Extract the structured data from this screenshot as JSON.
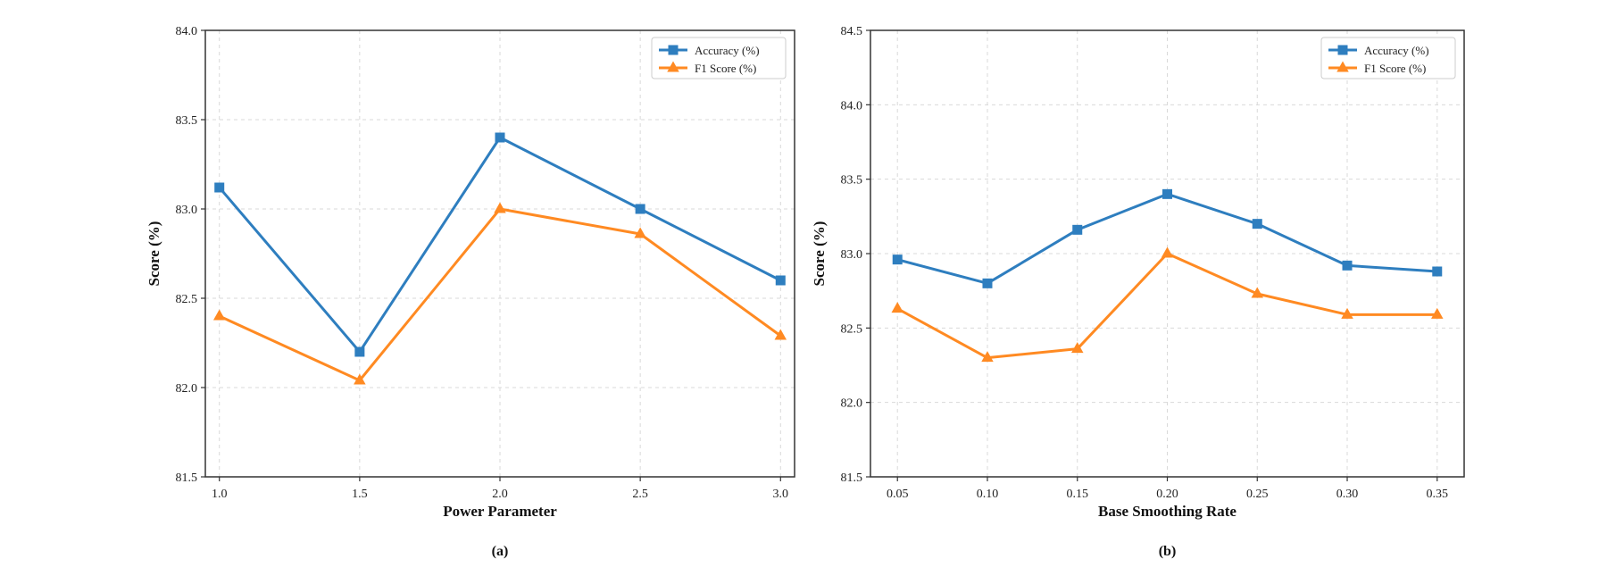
{
  "chart_data": [
    {
      "type": "line",
      "caption": "(a)",
      "title": "",
      "xlabel": "Power Parameter",
      "ylabel": "Score (%)",
      "x": [
        1.0,
        1.5,
        2.0,
        2.5,
        3.0
      ],
      "x_tick_labels": [
        "1.0",
        "1.5",
        "2.0",
        "2.5",
        "3.0"
      ],
      "y_tick_labels": [
        "81.5",
        "82.0",
        "82.5",
        "83.0",
        "83.5",
        "84.0"
      ],
      "xlim": [
        0.95,
        3.05
      ],
      "ylim": [
        81.5,
        84.0
      ],
      "grid": true,
      "legend_position": "top-right",
      "series": [
        {
          "name": "Accuracy (%)",
          "color": "#2e7ebf",
          "marker": "square",
          "values": [
            83.12,
            82.2,
            83.4,
            83.0,
            82.6
          ]
        },
        {
          "name": "F1 Score (%)",
          "color": "#ff8a22",
          "marker": "triangle",
          "values": [
            82.4,
            82.04,
            83.0,
            82.86,
            82.29
          ]
        }
      ]
    },
    {
      "type": "line",
      "caption": "(b)",
      "title": "",
      "xlabel": "Base Smoothing Rate",
      "ylabel": "Score (%)",
      "x": [
        0.05,
        0.1,
        0.15,
        0.2,
        0.25,
        0.3,
        0.35
      ],
      "x_tick_labels": [
        "0.05",
        "0.10",
        "0.15",
        "0.20",
        "0.25",
        "0.30",
        "0.35"
      ],
      "y_tick_labels": [
        "81.5",
        "82.0",
        "82.5",
        "83.0",
        "83.5",
        "84.0",
        "84.5"
      ],
      "xlim": [
        0.035,
        0.365
      ],
      "ylim": [
        81.5,
        84.5
      ],
      "grid": true,
      "legend_position": "top-right",
      "series": [
        {
          "name": "Accuracy (%)",
          "color": "#2e7ebf",
          "marker": "square",
          "values": [
            82.96,
            82.8,
            83.16,
            83.4,
            83.2,
            82.92,
            82.88
          ]
        },
        {
          "name": "F1 Score (%)",
          "color": "#ff8a22",
          "marker": "triangle",
          "values": [
            82.63,
            82.3,
            82.36,
            83.0,
            82.73,
            82.59,
            82.59
          ]
        }
      ]
    }
  ]
}
